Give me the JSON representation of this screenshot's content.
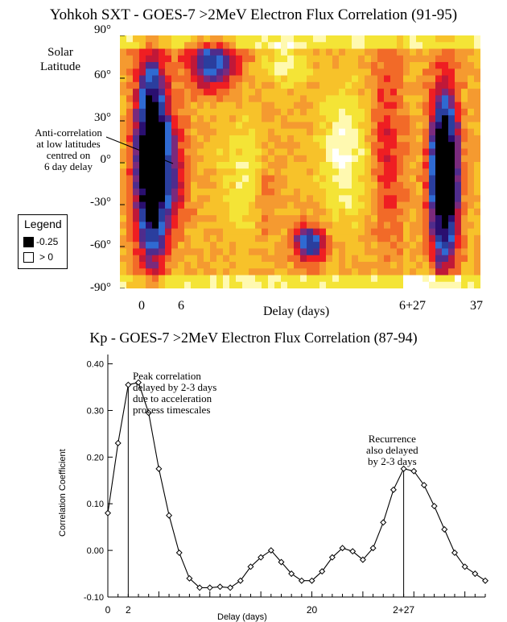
{
  "chart_data": [
    {
      "type": "heatmap",
      "title": "Yohkoh SXT - GOES-7 >2MeV Electron Flux Correlation (91-95)",
      "ylabel": "Solar\nLatitude",
      "xlabel": "Delay (days)",
      "xlim": [
        0,
        37
      ],
      "ylim": [
        -90,
        90
      ],
      "y_ticks": [
        "90°",
        "60°",
        "30°",
        "0°",
        "-30°",
        "-60°",
        "-90°"
      ],
      "x_ticks": [
        {
          "x": 0,
          "label": "0"
        },
        {
          "x": 6,
          "label": "6"
        },
        {
          "x": 33,
          "label": "6+27"
        },
        {
          "x": 37,
          "label": "37"
        }
      ],
      "legend": {
        "title": "Legend",
        "items": [
          {
            "label": "-0.25",
            "color": "#000000"
          },
          {
            "label": "> 0",
            "color": "#ffffff"
          }
        ]
      },
      "annotation": {
        "lines": [
          "Anti-correlation",
          "at low latitudes",
          "centred on",
          "6 day delay"
        ],
        "target": {
          "x": 6,
          "y": 0
        }
      },
      "colors": [
        "#000000",
        "#2a0f70",
        "#2a3e9e",
        "#2f6ad2",
        "#4f2c8c",
        "#7a2a7c",
        "#c01838",
        "#ef1e22",
        "#f26a28",
        "#f59a30",
        "#f7c22a",
        "#f4e436",
        "#fff9b0",
        "#ffffff"
      ]
    },
    {
      "type": "line",
      "title": "Kp - GOES-7 >2MeV Electron Flux Correlation (87-94)",
      "xlabel": "Delay (days)",
      "ylabel": "Correlation Coefficient",
      "xlim": [
        0,
        37
      ],
      "ylim": [
        -0.1,
        0.42
      ],
      "y_ticks": [
        {
          "y": 0.4,
          "label": "0.40"
        },
        {
          "y": 0.3,
          "label": "0.30"
        },
        {
          "y": 0.2,
          "label": "0.20"
        },
        {
          "y": 0.1,
          "label": "0.10"
        },
        {
          "y": 0.0,
          "label": "0.00"
        },
        {
          "y": -0.1,
          "label": "-0.10"
        }
      ],
      "x_ticks": [
        {
          "x": 0,
          "label": "0"
        },
        {
          "x": 2,
          "label": "2"
        },
        {
          "x": 20,
          "label": "20"
        },
        {
          "x": 29,
          "label": "2+27"
        }
      ],
      "x": [
        0,
        1,
        2,
        3,
        4,
        5,
        6,
        7,
        8,
        9,
        10,
        11,
        12,
        13,
        14,
        15,
        16,
        17,
        18,
        19,
        20,
        21,
        22,
        23,
        24,
        25,
        26,
        27,
        28,
        29,
        30,
        31,
        32,
        33,
        34,
        35,
        36,
        37
      ],
      "values": [
        0.08,
        0.23,
        0.355,
        0.36,
        0.295,
        0.175,
        0.075,
        -0.005,
        -0.06,
        -0.08,
        -0.08,
        -0.078,
        -0.08,
        -0.065,
        -0.035,
        -0.015,
        0.0,
        -0.025,
        -0.05,
        -0.065,
        -0.065,
        -0.045,
        -0.015,
        0.005,
        -0.002,
        -0.02,
        0.005,
        0.06,
        0.13,
        0.175,
        0.17,
        0.14,
        0.095,
        0.045,
        -0.005,
        -0.035,
        -0.05,
        -0.065
      ],
      "vlines": [
        2,
        29
      ],
      "annotations": [
        {
          "lines": [
            "Peak correlation",
            "delayed by 2-3 days",
            "due to acceleration",
            "process timescales"
          ]
        },
        {
          "lines": [
            "Recurrence",
            "also delayed",
            "by 2-3 days"
          ]
        }
      ]
    }
  ]
}
